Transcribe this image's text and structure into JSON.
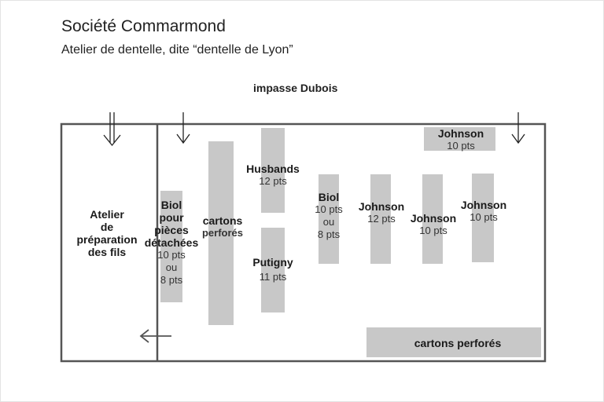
{
  "title": "Société Commarmond",
  "subtitle": "Atelier de dentelle, dite “dentelle de Lyon”",
  "street": "impasse Dubois",
  "prep_room": {
    "lines": [
      "Atelier",
      "de",
      "préparation",
      "des fils"
    ]
  },
  "machines": {
    "biol_left": {
      "name_lines": [
        "Biol",
        "pour",
        "pièces",
        "détachées"
      ],
      "pts_lines": [
        "10 pts",
        "ou",
        "8 pts"
      ]
    },
    "cartons_vertical": {
      "lines": [
        "cartons",
        "perforés"
      ]
    },
    "husbands": {
      "name": "Husbands",
      "pts": "12 pts"
    },
    "putigny": {
      "name": "Putigny",
      "pts": "11 pts"
    },
    "biol_mid": {
      "name": "Biol",
      "pts_lines": [
        "10 pts",
        "ou",
        "8 pts"
      ]
    },
    "johnson_12": {
      "name": "Johnson",
      "pts": "12 pts"
    },
    "johnson_10a": {
      "name": "Johnson",
      "pts": "10 pts"
    },
    "johnson_10b": {
      "name": "Johnson",
      "pts": "10 pts"
    },
    "johnson_top": {
      "name": "Johnson",
      "pts": "10 pts"
    },
    "cartons_bottom": {
      "label": "cartons perforés"
    }
  },
  "colors": {
    "wall": "#555555",
    "machine": "#c8c8c8",
    "text": "#1a1a1a"
  },
  "icons": [
    "double-entrance-arrow-icon",
    "entrance-arrow-icon",
    "exit-arrow-icon"
  ]
}
